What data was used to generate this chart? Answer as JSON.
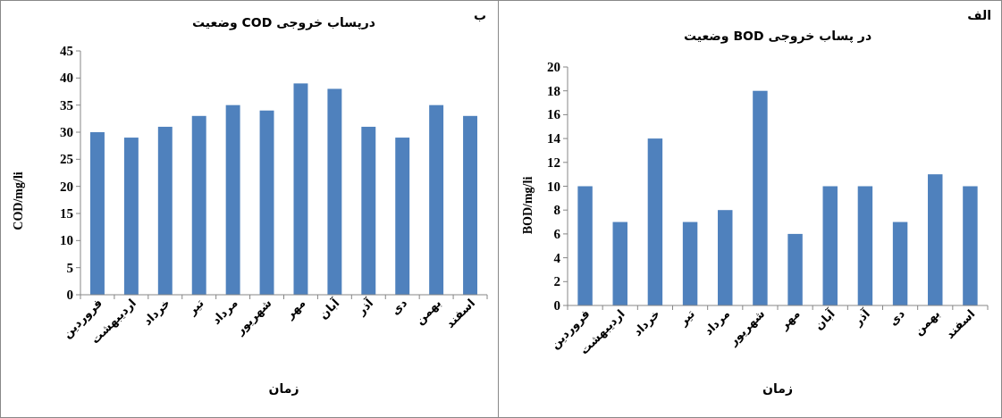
{
  "chart_data": [
    {
      "type": "bar",
      "title": "وضعیت COD درپساب خروجی",
      "xlabel": "زمان",
      "ylabel": "COD/mg/li",
      "annotations": [
        "ب"
      ],
      "categories": [
        "فروردین",
        "اردیبهشت",
        "خرداد",
        "تیر",
        "مرداد",
        "شهریور",
        "مهر",
        "آبان",
        "آذر",
        "دی",
        "بهمن",
        "اسفند"
      ],
      "series": [
        {
          "color": "#4f81bd",
          "values": [
            30,
            29,
            31,
            33,
            35,
            34,
            39,
            38,
            31,
            29,
            35,
            33
          ]
        }
      ],
      "ylim": [
        0,
        45
      ],
      "yticks": [
        0,
        5,
        10,
        15,
        20,
        25,
        30,
        35,
        40,
        45
      ],
      "grid": false
    },
    {
      "type": "bar",
      "title": "وضعیت BOD در پساب خروجی",
      "xlabel": "زمان",
      "ylabel": "BOD/mg/li",
      "annotations": [
        "الف"
      ],
      "categories": [
        "فروردین",
        "اردیبهشت",
        "خرداد",
        "تیر",
        "مرداد",
        "شهریور",
        "مهر",
        "آبان",
        "آذر",
        "دی",
        "بهمن",
        "اسفند"
      ],
      "series": [
        {
          "color": "#4f81bd",
          "values": [
            10,
            7,
            14,
            7,
            8,
            18,
            6,
            10,
            10,
            7,
            11,
            10
          ]
        }
      ],
      "ylim": [
        0,
        20
      ],
      "yticks": [
        0,
        2,
        4,
        6,
        8,
        10,
        12,
        14,
        16,
        18,
        20
      ],
      "grid": false
    }
  ]
}
